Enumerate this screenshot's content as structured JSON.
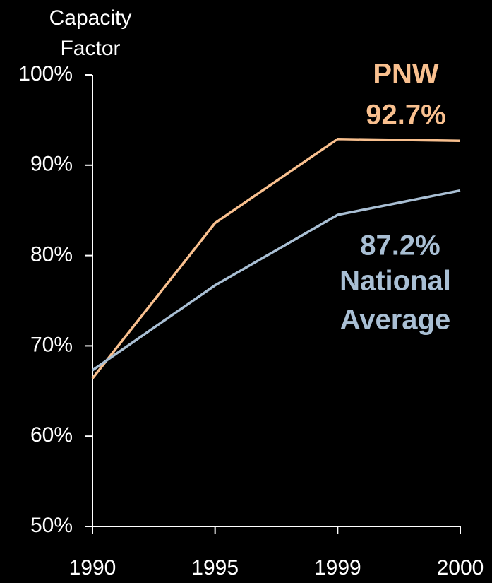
{
  "chart_data": {
    "type": "line",
    "ylabel_lines": [
      "Capacity",
      "Factor"
    ],
    "categories": [
      "1990",
      "1995",
      "1999",
      "2000"
    ],
    "series": [
      {
        "name": "PNW",
        "color": "#f9c08f",
        "values": [
          66.4,
          83.6,
          92.9,
          92.7
        ]
      },
      {
        "name": "National Average",
        "color": "#a9bfd4",
        "values": [
          67.3,
          76.7,
          84.5,
          87.2
        ]
      }
    ],
    "ylim": [
      50,
      100
    ],
    "yticks": [
      {
        "value": 50,
        "label": "50%"
      },
      {
        "value": 60,
        "label": "60%"
      },
      {
        "value": 70,
        "label": "70%"
      },
      {
        "value": 80,
        "label": "80%"
      },
      {
        "value": 90,
        "label": "90%"
      },
      {
        "value": 100,
        "label": "100%"
      }
    ],
    "annotations": [
      {
        "text": "PNW",
        "color": "#f9c08f"
      },
      {
        "text": "92.7%",
        "color": "#f9c08f"
      },
      {
        "text": "87.2%",
        "color": "#a9bfd4"
      },
      {
        "text": "National",
        "color": "#a9bfd4"
      },
      {
        "text": "Average",
        "color": "#a9bfd4"
      }
    ]
  }
}
